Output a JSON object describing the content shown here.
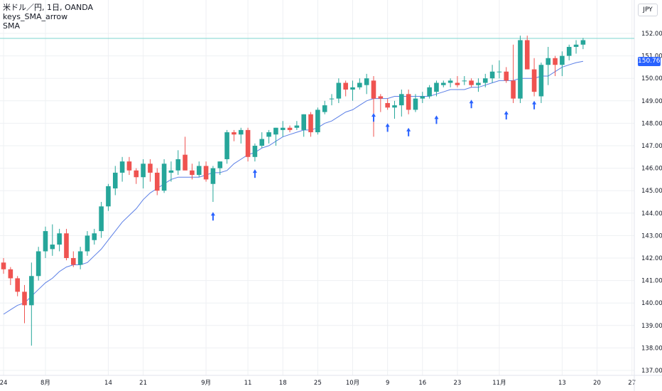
{
  "legend": {
    "symbol": "米ドル／円, 1日, OANDA",
    "indicator1": "keys_SMA_arrow",
    "indicator2": "SMA"
  },
  "currency": "JPY",
  "last_price": "150.765",
  "colors": {
    "up": "#26a69a",
    "down": "#ef5350",
    "sma": "#5b7fe6",
    "arrow": "#2962ff",
    "grid": "#eef0f3",
    "price_line": "#7dd6cf"
  },
  "chart_data": {
    "type": "candlestick",
    "title": "米ドル／円, 1日, OANDA",
    "xlabel": "",
    "ylabel": "",
    "ylim": [
      136.8,
      152.5
    ],
    "y_ticks": [
      "152.000",
      "151.000",
      "150.000",
      "149.000",
      "148.000",
      "147.000",
      "146.000",
      "145.000",
      "144.000",
      "143.000",
      "142.000",
      "141.000",
      "140.000",
      "139.000",
      "138.000",
      "137.000"
    ],
    "x_ticks": [
      {
        "label": "24",
        "index": 0
      },
      {
        "label": "8月",
        "index": 6
      },
      {
        "label": "14",
        "index": 15
      },
      {
        "label": "21",
        "index": 20
      },
      {
        "label": "9月",
        "index": 29
      },
      {
        "label": "11",
        "index": 35
      },
      {
        "label": "18",
        "index": 40
      },
      {
        "label": "25",
        "index": 45
      },
      {
        "label": "10月",
        "index": 50
      },
      {
        "label": "9",
        "index": 55
      },
      {
        "label": "16",
        "index": 60
      },
      {
        "label": "23",
        "index": 65
      },
      {
        "label": "11月",
        "index": 71
      },
      {
        "label": "13",
        "index": 80
      },
      {
        "label": "20",
        "index": 85
      },
      {
        "label": "27",
        "index": 90
      }
    ],
    "last_price_line": 151.78,
    "arrow_length": 0.38,
    "candles": [
      [
        141.8,
        142.0,
        141.3,
        141.5
      ],
      [
        141.5,
        141.6,
        140.8,
        141.1
      ],
      [
        141.1,
        141.2,
        140.3,
        140.5
      ],
      [
        140.5,
        140.8,
        139.1,
        139.9
      ],
      [
        139.9,
        141.8,
        138.1,
        141.2
      ],
      [
        141.2,
        142.5,
        141.0,
        142.3
      ],
      [
        142.3,
        143.4,
        142.0,
        143.2
      ],
      [
        142.4,
        143.5,
        142.1,
        142.6
      ],
      [
        142.6,
        143.3,
        142.3,
        143.1
      ],
      [
        143.1,
        143.3,
        141.9,
        142.0
      ],
      [
        142.0,
        142.3,
        141.6,
        141.7
      ],
      [
        141.7,
        142.5,
        141.5,
        142.3
      ],
      [
        142.3,
        143.2,
        142.1,
        143.0
      ],
      [
        142.8,
        143.3,
        142.6,
        143.1
      ],
      [
        143.2,
        144.5,
        142.9,
        144.3
      ],
      [
        144.3,
        145.3,
        144.1,
        145.2
      ],
      [
        145.1,
        146.1,
        144.8,
        145.8
      ],
      [
        145.8,
        146.5,
        145.4,
        146.3
      ],
      [
        146.3,
        146.5,
        145.7,
        145.9
      ],
      [
        145.9,
        146.0,
        145.3,
        145.6
      ],
      [
        145.6,
        146.4,
        145.1,
        146.2
      ],
      [
        146.2,
        146.4,
        145.4,
        145.8
      ],
      [
        145.8,
        146.0,
        144.8,
        145.0
      ],
      [
        145.0,
        146.4,
        144.9,
        146.2
      ],
      [
        145.8,
        146.3,
        145.4,
        145.9
      ],
      [
        145.9,
        146.8,
        145.7,
        146.4
      ],
      [
        146.6,
        147.4,
        146.0,
        145.9
      ],
      [
        145.9,
        146.2,
        145.5,
        145.7
      ],
      [
        145.7,
        146.3,
        145.6,
        146.1
      ],
      [
        146.1,
        146.3,
        145.4,
        145.5
      ],
      [
        145.3,
        146.1,
        144.5,
        146.0
      ],
      [
        146.0,
        146.3,
        145.7,
        146.3
      ],
      [
        146.4,
        147.7,
        146.2,
        147.6
      ],
      [
        147.6,
        147.7,
        147.2,
        147.5
      ],
      [
        147.5,
        147.8,
        147.1,
        147.7
      ],
      [
        147.7,
        147.8,
        146.3,
        146.5
      ],
      [
        146.5,
        147.1,
        146.3,
        147.0
      ],
      [
        147.0,
        147.6,
        146.9,
        147.3
      ],
      [
        147.4,
        147.7,
        147.1,
        147.6
      ],
      [
        147.5,
        147.8,
        147.0,
        147.8
      ],
      [
        147.7,
        148.1,
        147.4,
        147.8
      ],
      [
        147.8,
        147.9,
        147.6,
        147.7
      ],
      [
        147.8,
        148.1,
        147.7,
        147.9
      ],
      [
        147.7,
        148.4,
        147.4,
        148.4
      ],
      [
        148.4,
        148.5,
        147.4,
        147.6
      ],
      [
        147.6,
        148.7,
        147.5,
        148.6
      ],
      [
        148.5,
        149.0,
        148.4,
        148.8
      ],
      [
        149.1,
        149.3,
        148.8,
        149.1
      ],
      [
        149.1,
        150.0,
        148.9,
        149.8
      ],
      [
        149.8,
        149.9,
        149.2,
        149.5
      ],
      [
        149.5,
        149.9,
        149.0,
        149.6
      ],
      [
        149.6,
        150.0,
        149.5,
        149.8
      ],
      [
        149.7,
        150.2,
        149.3,
        150.0
      ],
      [
        149.9,
        150.1,
        147.4,
        149.1
      ],
      [
        149.2,
        149.3,
        148.5,
        149.1
      ],
      [
        148.9,
        149.1,
        148.6,
        148.7
      ],
      [
        148.7,
        149.0,
        148.2,
        148.8
      ],
      [
        148.8,
        149.5,
        148.3,
        149.3
      ],
      [
        149.3,
        149.5,
        148.4,
        148.6
      ],
      [
        148.6,
        149.3,
        148.5,
        149.1
      ],
      [
        149.1,
        149.4,
        148.9,
        149.2
      ],
      [
        149.2,
        149.7,
        149.1,
        149.6
      ],
      [
        149.4,
        149.9,
        149.2,
        149.8
      ],
      [
        149.7,
        149.9,
        149.6,
        149.8
      ],
      [
        149.8,
        150.0,
        149.6,
        149.9
      ],
      [
        149.8,
        150.1,
        149.6,
        149.7
      ],
      [
        149.9,
        150.1,
        149.7,
        149.9
      ],
      [
        149.9,
        150.0,
        149.6,
        149.7
      ],
      [
        149.7,
        150.0,
        149.4,
        149.8
      ],
      [
        149.8,
        150.2,
        149.6,
        150.0
      ],
      [
        150.0,
        150.6,
        149.8,
        150.3
      ],
      [
        150.3,
        150.8,
        150.0,
        150.3
      ],
      [
        150.3,
        150.5,
        149.8,
        149.9
      ],
      [
        149.9,
        151.5,
        148.9,
        149.1
      ],
      [
        149.1,
        151.9,
        148.9,
        151.7
      ],
      [
        151.7,
        151.9,
        150.4,
        150.4
      ],
      [
        150.4,
        150.9,
        149.2,
        149.4
      ],
      [
        149.2,
        150.7,
        148.9,
        150.6
      ],
      [
        150.6,
        151.4,
        149.7,
        150.9
      ],
      [
        150.9,
        151.0,
        150.1,
        150.6
      ],
      [
        150.6,
        151.2,
        150.1,
        151.0
      ],
      [
        151.0,
        151.5,
        150.8,
        151.4
      ],
      [
        151.4,
        151.7,
        151.1,
        151.5
      ],
      [
        151.5,
        151.8,
        151.3,
        151.7
      ]
    ],
    "sma": [
      139.5,
      139.7,
      139.9,
      140.0,
      140.3,
      140.6,
      140.9,
      141.1,
      141.4,
      141.6,
      141.7,
      141.7,
      141.8,
      142.1,
      142.4,
      142.8,
      143.2,
      143.6,
      143.9,
      144.2,
      144.6,
      144.9,
      145.1,
      145.3,
      145.5,
      145.6,
      145.6,
      145.6,
      145.6,
      145.7,
      145.8,
      145.8,
      145.9,
      146.2,
      146.4,
      146.6,
      146.7,
      146.9,
      147.0,
      147.2,
      147.4,
      147.5,
      147.6,
      147.7,
      147.7,
      147.8,
      148.0,
      148.1,
      148.3,
      148.5,
      148.6,
      148.8,
      149.0,
      149.1,
      149.1,
      149.1,
      149.2,
      149.2,
      149.2,
      149.2,
      149.2,
      149.2,
      149.3,
      149.4,
      149.5,
      149.5,
      149.5,
      149.6,
      149.6,
      149.7,
      149.8,
      149.9,
      149.9,
      149.9,
      150.0,
      150.0,
      150.0,
      150.1,
      150.1,
      150.3,
      150.5,
      150.6,
      150.7,
      150.76
    ],
    "arrows": [
      {
        "index": 30,
        "tip": 144.05
      },
      {
        "index": 36,
        "tip": 145.95
      },
      {
        "index": 53,
        "tip": 148.45
      },
      {
        "index": 55,
        "tip": 148.0
      },
      {
        "index": 58,
        "tip": 147.8
      },
      {
        "index": 62,
        "tip": 148.35
      },
      {
        "index": 67,
        "tip": 149.05
      },
      {
        "index": 72,
        "tip": 148.55
      },
      {
        "index": 76,
        "tip": 149.0
      }
    ]
  }
}
